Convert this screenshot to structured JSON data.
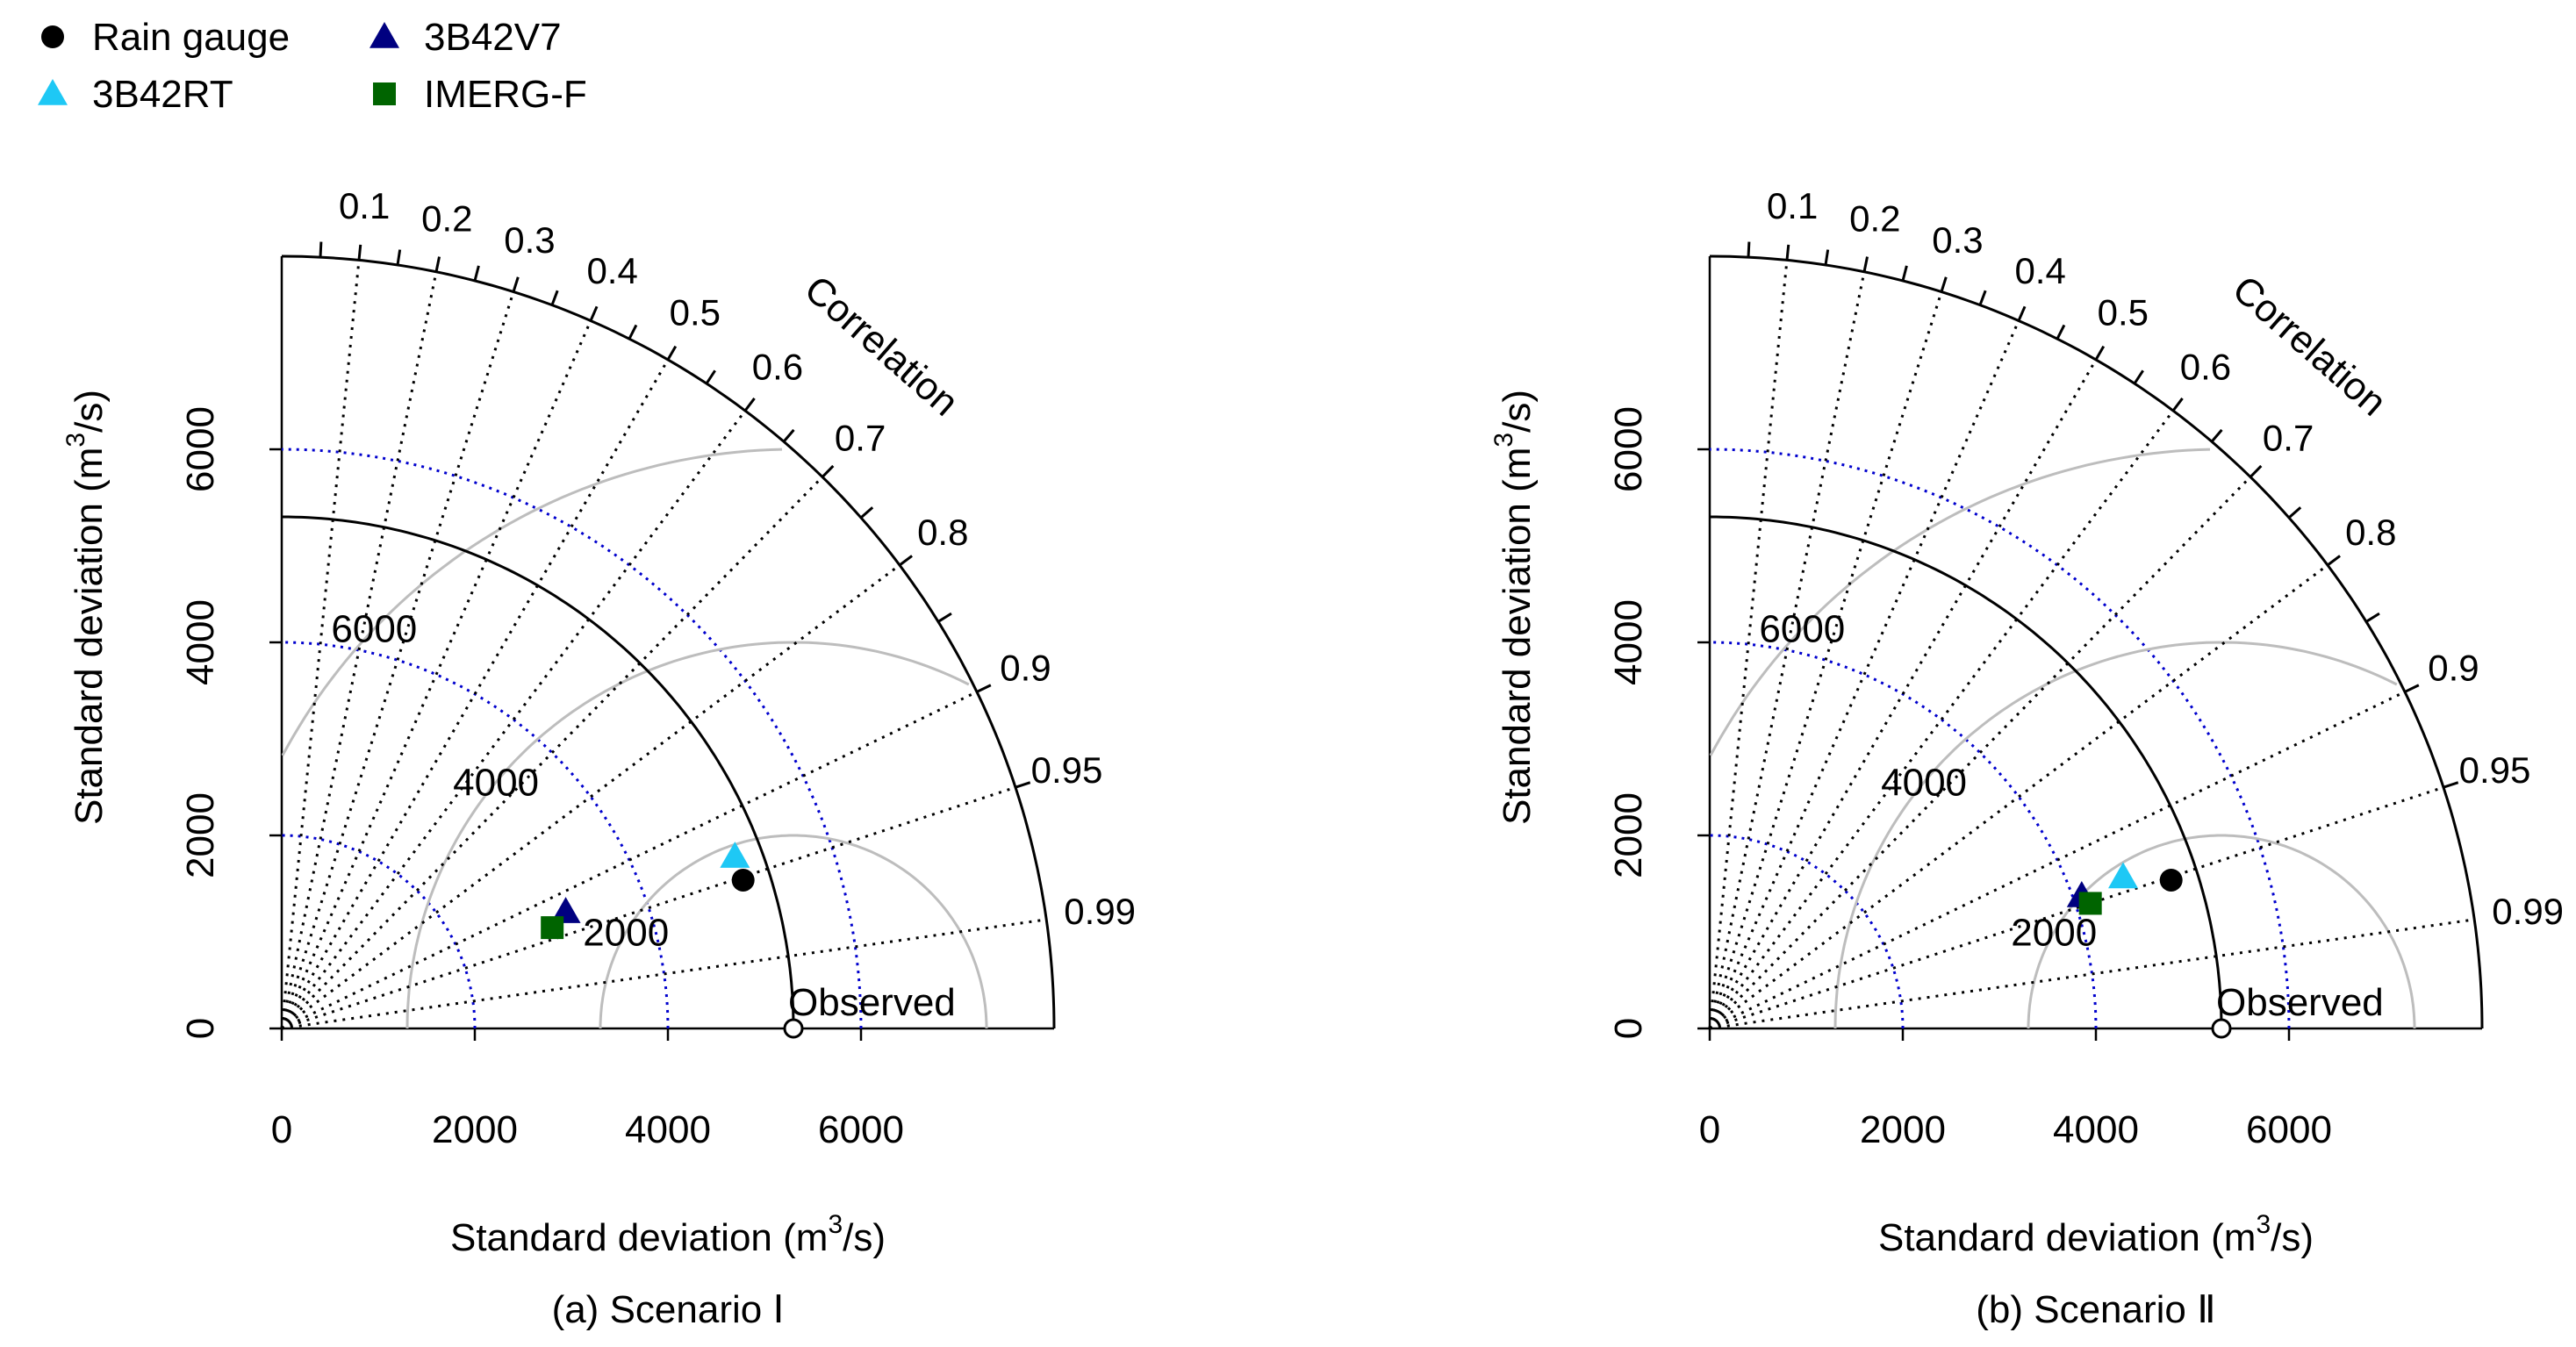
{
  "chart_data": [
    {
      "type": "taylor",
      "caption": "(a) Scenario Ⅰ",
      "xlabel": "Standard deviation (m³/s)",
      "ylabel": "Standard deviation (m³/s)",
      "axis_title": {
        "prefix": "Standard deviation (m",
        "exp": "3",
        "suffix": "/s)"
      },
      "sd_max": 8000,
      "x_ticks": [
        0,
        2000,
        4000,
        6000
      ],
      "y_ticks": [
        0,
        2000,
        4000,
        6000
      ],
      "observed_sd": 5300,
      "observed_label": "Observed",
      "correlation_title": "Correlation",
      "correlation_ticks": [
        0.1,
        0.2,
        0.3,
        0.4,
        0.5,
        0.6,
        0.7,
        0.8,
        0.9,
        0.95,
        0.99
      ],
      "correlation_tick_labels": [
        "0.1",
        "0.2",
        "0.3",
        "0.4",
        "0.5",
        "0.6",
        "0.7",
        "0.8",
        "0.9",
        "0.95",
        "0.99"
      ],
      "rmsd_levels": [
        2000,
        4000,
        6000
      ],
      "rmsd_labels": [
        "2000",
        "4000",
        "6000"
      ],
      "sd_reference_circles_blue": [
        2000,
        4000,
        6000
      ],
      "points": [
        {
          "name": "Rain gauge",
          "sd": 5020,
          "correlation": 0.952
        },
        {
          "name": "3B42V7",
          "sd": 3180,
          "correlation": 0.925
        },
        {
          "name": "3B42RT",
          "sd": 5020,
          "correlation": 0.935
        },
        {
          "name": "IMERG-F",
          "sd": 2990,
          "correlation": 0.937
        }
      ]
    },
    {
      "type": "taylor",
      "caption": "(b) Scenario Ⅱ",
      "xlabel": "Standard deviation (m³/s)",
      "ylabel": "Standard deviation (m³/s)",
      "axis_title": {
        "prefix": "Standard deviation (m",
        "exp": "3",
        "suffix": "/s)"
      },
      "sd_max": 8000,
      "x_ticks": [
        0,
        2000,
        4000,
        6000
      ],
      "y_ticks": [
        0,
        2000,
        4000,
        6000
      ],
      "observed_sd": 5300,
      "observed_label": "Observed",
      "correlation_title": "Correlation",
      "correlation_ticks": [
        0.1,
        0.2,
        0.3,
        0.4,
        0.5,
        0.6,
        0.7,
        0.8,
        0.9,
        0.95,
        0.99
      ],
      "correlation_tick_labels": [
        "0.1",
        "0.2",
        "0.3",
        "0.4",
        "0.5",
        "0.6",
        "0.7",
        "0.8",
        "0.9",
        "0.95",
        "0.99"
      ],
      "rmsd_levels": [
        2000,
        4000,
        6000
      ],
      "rmsd_labels": [
        "2000",
        "4000",
        "6000"
      ],
      "sd_reference_circles_blue": [
        2000,
        4000,
        6000
      ],
      "points": [
        {
          "name": "Rain gauge",
          "sd": 5020,
          "correlation": 0.952
        },
        {
          "name": "3B42V7",
          "sd": 4090,
          "correlation": 0.942
        },
        {
          "name": "3B42RT",
          "sd": 4560,
          "correlation": 0.939
        },
        {
          "name": "IMERG-F",
          "sd": 4150,
          "correlation": 0.95
        }
      ]
    }
  ],
  "legend": [
    {
      "name": "Rain gauge",
      "marker": "circle",
      "color": "#000000"
    },
    {
      "name": "3B42V7",
      "marker": "triangle",
      "color": "#000080"
    },
    {
      "name": "3B42RT",
      "marker": "triangle",
      "color": "#1ec8f5"
    },
    {
      "name": "IMERG-F",
      "marker": "square",
      "color": "#006400"
    }
  ],
  "colors": {
    "sd_circles": "#0000cd",
    "rmsd_arcs": "#bdbdbd",
    "correlation_lines": "#000000"
  }
}
